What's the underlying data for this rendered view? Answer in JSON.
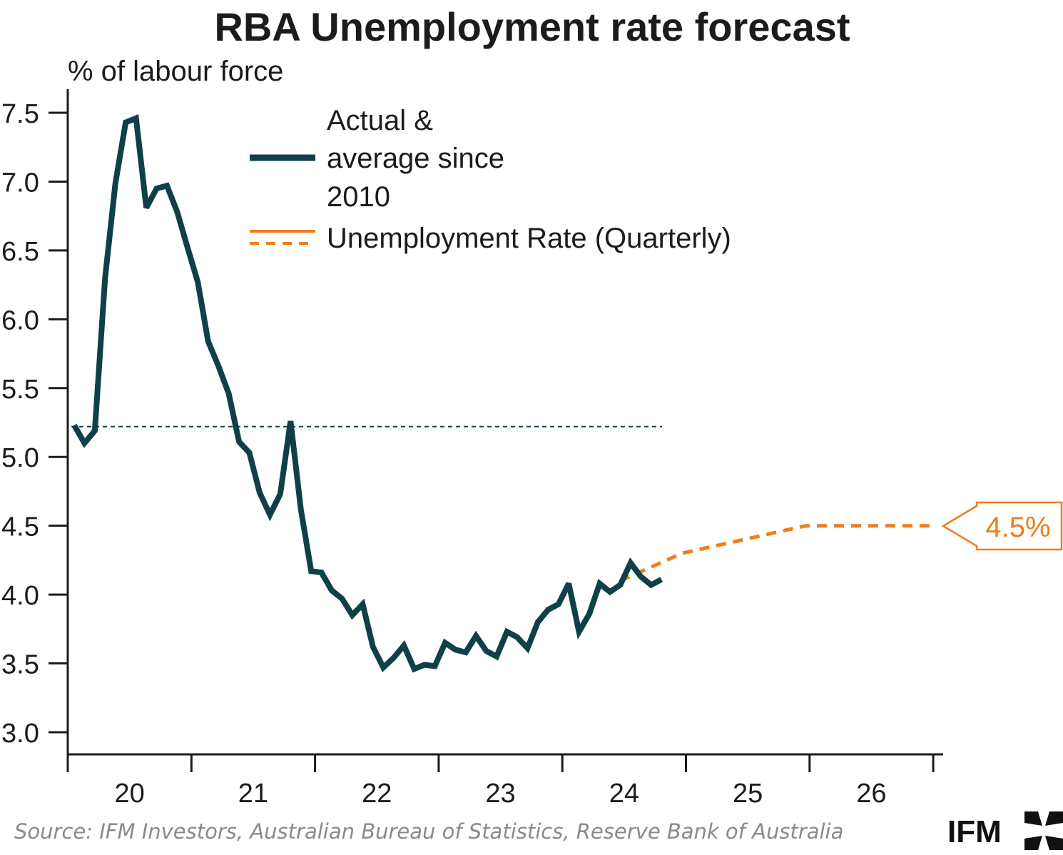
{
  "title": "RBA Unemployment rate forecast",
  "source": "Source: IFM Investors, Australian Bureau of Statistics, Reserve Bank of Australia",
  "logo_text": "IFM",
  "colors": {
    "actual": "#0f4047",
    "forecast": "#f07d1a",
    "axis": "#1b1b1b"
  },
  "chart_data": {
    "type": "line",
    "ylabel": "% of labour force",
    "ylim": [
      3.0,
      7.5
    ],
    "yticks": [
      "3.0",
      "3.5",
      "4.0",
      "4.5",
      "5.0",
      "5.5",
      "6.0",
      "6.5",
      "7.0",
      "7.5"
    ],
    "xticks": [
      "20",
      "21",
      "22",
      "23",
      "24",
      "25",
      "26"
    ],
    "legend": {
      "actual_lines": [
        "Actual &",
        "average since",
        "2010"
      ],
      "forecast": "Unemployment Rate (Quarterly)"
    },
    "average_since_2010": 5.22,
    "actual": {
      "x": [
        "2020-01",
        "2020-02",
        "2020-03",
        "2020-04",
        "2020-05",
        "2020-06",
        "2020-07",
        "2020-08",
        "2020-09",
        "2020-10",
        "2020-11",
        "2020-12",
        "2021-01",
        "2021-02",
        "2021-03",
        "2021-04",
        "2021-05",
        "2021-06",
        "2021-07",
        "2021-08",
        "2021-09",
        "2021-10",
        "2021-11",
        "2021-12",
        "2022-01",
        "2022-02",
        "2022-03",
        "2022-04",
        "2022-05",
        "2022-06",
        "2022-07",
        "2022-08",
        "2022-09",
        "2022-10",
        "2022-11",
        "2022-12",
        "2023-01",
        "2023-02",
        "2023-03",
        "2023-04",
        "2023-05",
        "2023-06",
        "2023-07",
        "2023-08",
        "2023-09",
        "2023-10",
        "2023-11",
        "2023-12",
        "2024-01",
        "2024-02",
        "2024-03",
        "2024-04",
        "2024-05",
        "2024-06",
        "2024-07",
        "2024-08",
        "2024-09",
        "2024-10"
      ],
      "y": [
        5.23,
        5.1,
        5.19,
        6.3,
        6.99,
        7.43,
        7.46,
        6.81,
        6.95,
        6.97,
        6.78,
        6.52,
        6.27,
        5.84,
        5.66,
        5.46,
        5.11,
        5.03,
        4.74,
        4.58,
        4.73,
        5.26,
        4.62,
        4.17,
        4.16,
        4.03,
        3.97,
        3.85,
        3.93,
        3.62,
        3.47,
        3.54,
        3.63,
        3.46,
        3.49,
        3.48,
        3.65,
        3.6,
        3.58,
        3.7,
        3.59,
        3.55,
        3.73,
        3.69,
        3.61,
        3.8,
        3.89,
        3.93,
        4.08,
        3.73,
        3.86,
        4.08,
        4.02,
        4.07,
        4.23,
        4.13,
        4.07,
        4.11
      ]
    },
    "forecast": {
      "x": [
        "2024-06",
        "2024-12",
        "2025-06",
        "2025-12",
        "2026-06",
        "2026-12"
      ],
      "y": [
        4.1,
        4.3,
        4.4,
        4.5,
        4.5,
        4.5
      ]
    },
    "callout": "4.5%"
  }
}
